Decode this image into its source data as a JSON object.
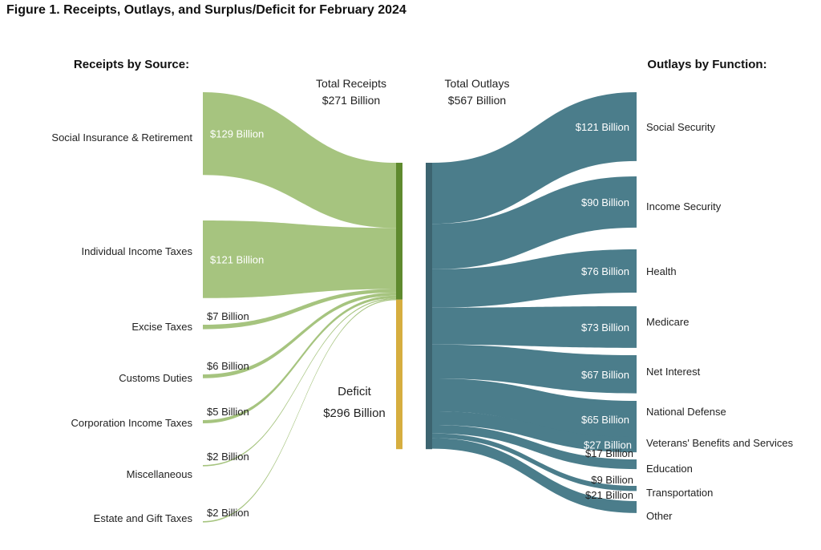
{
  "title": "Figure 1. Receipts, Outlays, and Surplus/Deficit for February 2024",
  "chart_data": {
    "type": "sankey",
    "receipts_heading": "Receipts by Source:",
    "outlays_heading": "Outlays by Function:",
    "total_receipts": {
      "label": "Total Receipts",
      "value_label": "$271 Billion",
      "value": 271
    },
    "total_outlays": {
      "label": "Total Outlays",
      "value_label": "$567 Billion",
      "value": 567
    },
    "deficit": {
      "label": "Deficit",
      "value_label": "$296 Billion",
      "value": 296
    },
    "receipts": [
      {
        "name": "Social Insurance & Retirement",
        "value": 129,
        "label": "$129 Billion"
      },
      {
        "name": "Individual Income Taxes",
        "value": 121,
        "label": "$121 Billion"
      },
      {
        "name": "Excise Taxes",
        "value": 7,
        "label": "$7 Billion"
      },
      {
        "name": "Customs Duties",
        "value": 6,
        "label": "$6 Billion"
      },
      {
        "name": "Corporation Income Taxes",
        "value": 5,
        "label": "$5 Billion"
      },
      {
        "name": "Miscellaneous",
        "value": 2,
        "label": "$2 Billion"
      },
      {
        "name": "Estate and Gift Taxes",
        "value": 2,
        "label": "$2 Billion"
      }
    ],
    "outlays": [
      {
        "name": "Social Security",
        "value": 121,
        "label": "$121 Billion"
      },
      {
        "name": "Income Security",
        "value": 90,
        "label": "$90 Billion"
      },
      {
        "name": "Health",
        "value": 76,
        "label": "$76 Billion"
      },
      {
        "name": "Medicare",
        "value": 73,
        "label": "$73 Billion"
      },
      {
        "name": "Net Interest",
        "value": 67,
        "label": "$67 Billion"
      },
      {
        "name": "National Defense",
        "value": 65,
        "label": "$65 Billion"
      },
      {
        "name": "Veterans' Benefits and Services",
        "value": 27,
        "label": "$27 Billion"
      },
      {
        "name": "Education",
        "value": 17,
        "label": "$17 Billion"
      },
      {
        "name": "Transportation",
        "value": 9,
        "label": "$9 Billion"
      },
      {
        "name": "Other",
        "value": 21,
        "label": "$21 Billion"
      }
    ],
    "colors": {
      "receipts_flow": "#a6c47f",
      "receipts_bar": "#5f8a2e",
      "outlays_flow": "#4b7d8b",
      "outlays_bar": "#3c6470",
      "deficit_bar": "#d6ae3f"
    }
  }
}
